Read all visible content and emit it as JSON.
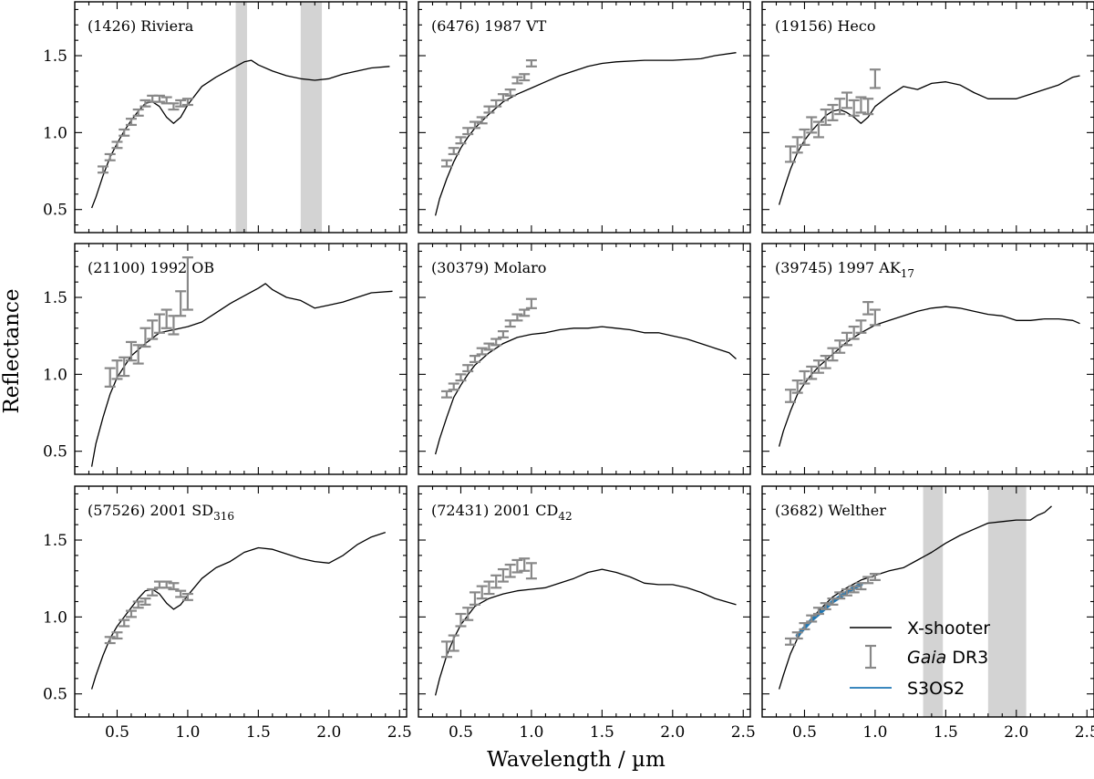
{
  "figure": {
    "xlabel": "Wavelength / µm",
    "ylabel": "Reflectance"
  },
  "legend": {
    "xshooter": "X-shooter",
    "gaia_italic": "Gaia",
    "gaia_rest": " DR3",
    "s3os2": "S3OS2"
  },
  "chart_data": [
    {
      "type": "line",
      "title": "(1426) Riviera",
      "xlim": [
        0.2,
        2.55
      ],
      "ylim": [
        0.35,
        1.85
      ],
      "xticks": [
        0.5,
        1.0,
        1.5,
        2.0,
        2.5
      ],
      "yticks": [
        0.5,
        1.0,
        1.5
      ],
      "xticklabels": [
        "",
        "",
        "",
        "",
        ""
      ],
      "yticklabels": [
        "0.5",
        "1.0",
        "1.5"
      ],
      "bands": [
        [
          1.34,
          1.42
        ],
        [
          1.8,
          1.95
        ]
      ],
      "spectrum": {
        "x": [
          0.32,
          0.35,
          0.4,
          0.45,
          0.5,
          0.55,
          0.6,
          0.65,
          0.7,
          0.75,
          0.8,
          0.85,
          0.9,
          0.95,
          1.0,
          1.1,
          1.2,
          1.3,
          1.4,
          1.45,
          1.5,
          1.6,
          1.7,
          1.8,
          1.9,
          2.0,
          2.1,
          2.2,
          2.3,
          2.43
        ],
        "y": [
          0.51,
          0.58,
          0.72,
          0.84,
          0.93,
          1.01,
          1.08,
          1.14,
          1.19,
          1.2,
          1.17,
          1.1,
          1.06,
          1.1,
          1.18,
          1.3,
          1.36,
          1.41,
          1.46,
          1.47,
          1.44,
          1.4,
          1.37,
          1.35,
          1.34,
          1.35,
          1.38,
          1.4,
          1.42,
          1.43
        ]
      },
      "gaia": {
        "x": [
          0.4,
          0.45,
          0.5,
          0.55,
          0.6,
          0.65,
          0.7,
          0.75,
          0.8,
          0.85,
          0.9,
          0.95,
          1.0
        ],
        "y": [
          0.76,
          0.84,
          0.92,
          1.0,
          1.07,
          1.13,
          1.19,
          1.22,
          1.22,
          1.21,
          1.17,
          1.19,
          1.2
        ],
        "err": [
          0.02,
          0.02,
          0.02,
          0.02,
          0.02,
          0.02,
          0.02,
          0.02,
          0.02,
          0.02,
          0.02,
          0.02,
          0.02
        ]
      }
    },
    {
      "type": "line",
      "title": "(6476) 1987 VT",
      "xlim": [
        0.2,
        2.55
      ],
      "ylim": [
        0.35,
        1.85
      ],
      "xticks": [
        0.5,
        1.0,
        1.5,
        2.0,
        2.5
      ],
      "yticks": [
        0.5,
        1.0,
        1.5
      ],
      "xticklabels": [
        "",
        "",
        "",
        "",
        ""
      ],
      "yticklabels": [
        "",
        "",
        ""
      ],
      "bands": [],
      "spectrum": {
        "x": [
          0.32,
          0.35,
          0.4,
          0.45,
          0.5,
          0.55,
          0.6,
          0.7,
          0.8,
          0.9,
          1.0,
          1.1,
          1.2,
          1.3,
          1.4,
          1.5,
          1.6,
          1.8,
          2.0,
          2.2,
          2.3,
          2.45
        ],
        "y": [
          0.46,
          0.57,
          0.7,
          0.81,
          0.9,
          0.97,
          1.03,
          1.12,
          1.2,
          1.25,
          1.29,
          1.33,
          1.37,
          1.4,
          1.43,
          1.45,
          1.46,
          1.47,
          1.47,
          1.48,
          1.5,
          1.52
        ]
      },
      "gaia": {
        "x": [
          0.4,
          0.45,
          0.5,
          0.55,
          0.6,
          0.65,
          0.7,
          0.75,
          0.8,
          0.85,
          0.9,
          0.95,
          1.0
        ],
        "y": [
          0.8,
          0.88,
          0.95,
          1.01,
          1.05,
          1.08,
          1.15,
          1.19,
          1.23,
          1.26,
          1.34,
          1.36,
          1.45
        ],
        "err": [
          0.02,
          0.02,
          0.02,
          0.02,
          0.02,
          0.02,
          0.02,
          0.02,
          0.02,
          0.02,
          0.02,
          0.02,
          0.02
        ]
      }
    },
    {
      "type": "line",
      "title": "(19156) Heco",
      "xlim": [
        0.2,
        2.55
      ],
      "ylim": [
        0.35,
        1.85
      ],
      "xticks": [
        0.5,
        1.0,
        1.5,
        2.0,
        2.5
      ],
      "yticks": [
        0.5,
        1.0,
        1.5
      ],
      "xticklabels": [
        "",
        "",
        "",
        "",
        ""
      ],
      "yticklabels": [
        "",
        "",
        ""
      ],
      "bands": [],
      "spectrum": {
        "x": [
          0.32,
          0.35,
          0.4,
          0.45,
          0.5,
          0.55,
          0.6,
          0.65,
          0.7,
          0.75,
          0.8,
          0.85,
          0.9,
          0.95,
          1.0,
          1.1,
          1.2,
          1.3,
          1.4,
          1.5,
          1.6,
          1.7,
          1.8,
          1.9,
          2.0,
          2.1,
          2.2,
          2.3,
          2.4,
          2.45
        ],
        "y": [
          0.53,
          0.62,
          0.76,
          0.87,
          0.95,
          1.01,
          1.06,
          1.11,
          1.14,
          1.15,
          1.13,
          1.1,
          1.06,
          1.1,
          1.17,
          1.24,
          1.3,
          1.28,
          1.32,
          1.33,
          1.31,
          1.26,
          1.22,
          1.22,
          1.22,
          1.25,
          1.28,
          1.31,
          1.36,
          1.37
        ]
      },
      "gaia": {
        "x": [
          0.4,
          0.45,
          0.5,
          0.55,
          0.6,
          0.65,
          0.7,
          0.75,
          0.8,
          0.85,
          0.9,
          0.95,
          1.0
        ],
        "y": [
          0.86,
          0.92,
          0.97,
          1.05,
          1.02,
          1.1,
          1.13,
          1.17,
          1.21,
          1.16,
          1.18,
          1.17,
          1.35
        ],
        "err": [
          0.05,
          0.05,
          0.05,
          0.05,
          0.05,
          0.05,
          0.05,
          0.05,
          0.05,
          0.05,
          0.05,
          0.05,
          0.06
        ]
      }
    },
    {
      "type": "line",
      "title": "(21100) 1992 OB",
      "xlim": [
        0.2,
        2.55
      ],
      "ylim": [
        0.35,
        1.85
      ],
      "xticks": [
        0.5,
        1.0,
        1.5,
        2.0,
        2.5
      ],
      "yticks": [
        0.5,
        1.0,
        1.5
      ],
      "xticklabels": [
        "",
        "",
        "",
        "",
        ""
      ],
      "yticklabels": [
        "0.5",
        "1.0",
        "1.5"
      ],
      "bands": [],
      "spectrum": {
        "x": [
          0.32,
          0.35,
          0.4,
          0.45,
          0.5,
          0.55,
          0.6,
          0.7,
          0.8,
          0.9,
          1.0,
          1.1,
          1.2,
          1.3,
          1.4,
          1.5,
          1.55,
          1.6,
          1.7,
          1.8,
          1.9,
          2.0,
          2.1,
          2.2,
          2.3,
          2.45
        ],
        "y": [
          0.4,
          0.55,
          0.72,
          0.87,
          0.98,
          1.05,
          1.12,
          1.2,
          1.27,
          1.29,
          1.31,
          1.34,
          1.4,
          1.46,
          1.51,
          1.56,
          1.59,
          1.55,
          1.5,
          1.48,
          1.43,
          1.45,
          1.47,
          1.5,
          1.53,
          1.54
        ]
      },
      "gaia": {
        "x": [
          0.45,
          0.5,
          0.55,
          0.6,
          0.65,
          0.7,
          0.75,
          0.8,
          0.85,
          0.9,
          0.95,
          1.0
        ],
        "y": [
          0.98,
          1.03,
          1.05,
          1.15,
          1.13,
          1.24,
          1.29,
          1.33,
          1.36,
          1.32,
          1.46,
          1.59
        ],
        "err": [
          0.06,
          0.06,
          0.06,
          0.06,
          0.06,
          0.06,
          0.06,
          0.06,
          0.06,
          0.06,
          0.08,
          0.17
        ]
      }
    },
    {
      "type": "line",
      "title": "(30379) Molaro",
      "xlim": [
        0.2,
        2.55
      ],
      "ylim": [
        0.35,
        1.85
      ],
      "xticks": [
        0.5,
        1.0,
        1.5,
        2.0,
        2.5
      ],
      "yticks": [
        0.5,
        1.0,
        1.5
      ],
      "xticklabels": [
        "",
        "",
        "",
        "",
        ""
      ],
      "yticklabels": [
        "",
        "",
        ""
      ],
      "bands": [],
      "spectrum": {
        "x": [
          0.32,
          0.35,
          0.4,
          0.45,
          0.5,
          0.55,
          0.6,
          0.7,
          0.8,
          0.9,
          1.0,
          1.1,
          1.2,
          1.3,
          1.4,
          1.5,
          1.6,
          1.7,
          1.8,
          1.9,
          2.0,
          2.1,
          2.2,
          2.3,
          2.4,
          2.45
        ],
        "y": [
          0.48,
          0.58,
          0.72,
          0.85,
          0.93,
          1.0,
          1.06,
          1.14,
          1.2,
          1.24,
          1.26,
          1.27,
          1.29,
          1.3,
          1.3,
          1.31,
          1.3,
          1.29,
          1.27,
          1.27,
          1.25,
          1.23,
          1.2,
          1.17,
          1.14,
          1.1
        ]
      },
      "gaia": {
        "x": [
          0.4,
          0.45,
          0.5,
          0.55,
          0.6,
          0.65,
          0.7,
          0.75,
          0.8,
          0.85,
          0.9,
          0.95,
          1.0
        ],
        "y": [
          0.87,
          0.92,
          0.98,
          1.04,
          1.1,
          1.15,
          1.18,
          1.21,
          1.26,
          1.33,
          1.37,
          1.4,
          1.46
        ],
        "err": [
          0.02,
          0.02,
          0.02,
          0.02,
          0.02,
          0.02,
          0.02,
          0.02,
          0.02,
          0.02,
          0.02,
          0.02,
          0.03
        ]
      }
    },
    {
      "type": "line",
      "title": "(39745) 1997 AK17",
      "xlim": [
        0.2,
        2.55
      ],
      "ylim": [
        0.35,
        1.85
      ],
      "xticks": [
        0.5,
        1.0,
        1.5,
        2.0,
        2.5
      ],
      "yticks": [
        0.5,
        1.0,
        1.5
      ],
      "xticklabels": [
        "",
        "",
        "",
        "",
        ""
      ],
      "yticklabels": [
        "",
        "",
        ""
      ],
      "bands": [],
      "spectrum": {
        "x": [
          0.32,
          0.35,
          0.4,
          0.45,
          0.5,
          0.55,
          0.6,
          0.7,
          0.8,
          0.9,
          1.0,
          1.1,
          1.2,
          1.3,
          1.4,
          1.5,
          1.6,
          1.7,
          1.8,
          1.9,
          2.0,
          2.1,
          2.2,
          2.3,
          2.4,
          2.45
        ],
        "y": [
          0.53,
          0.63,
          0.76,
          0.87,
          0.94,
          1.0,
          1.05,
          1.13,
          1.21,
          1.27,
          1.32,
          1.35,
          1.38,
          1.41,
          1.43,
          1.44,
          1.43,
          1.41,
          1.39,
          1.38,
          1.35,
          1.35,
          1.36,
          1.36,
          1.35,
          1.33
        ]
      },
      "gaia": {
        "x": [
          0.4,
          0.45,
          0.5,
          0.55,
          0.6,
          0.65,
          0.7,
          0.75,
          0.8,
          0.85,
          0.9,
          0.95,
          1.0
        ],
        "y": [
          0.86,
          0.92,
          0.98,
          1.01,
          1.05,
          1.08,
          1.13,
          1.18,
          1.23,
          1.27,
          1.31,
          1.43,
          1.37
        ],
        "err": [
          0.04,
          0.04,
          0.04,
          0.04,
          0.04,
          0.04,
          0.04,
          0.04,
          0.04,
          0.04,
          0.04,
          0.04,
          0.05
        ]
      }
    },
    {
      "type": "line",
      "title": "(57526) 2001 SD316",
      "xlim": [
        0.2,
        2.55
      ],
      "ylim": [
        0.35,
        1.85
      ],
      "xticks": [
        0.5,
        1.0,
        1.5,
        2.0,
        2.5
      ],
      "yticks": [
        0.5,
        1.0,
        1.5
      ],
      "xticklabels": [
        "0.5",
        "1.0",
        "1.5",
        "2.0",
        "2.5"
      ],
      "yticklabels": [
        "0.5",
        "1.0",
        "1.5"
      ],
      "bands": [],
      "spectrum": {
        "x": [
          0.32,
          0.35,
          0.4,
          0.45,
          0.5,
          0.55,
          0.6,
          0.65,
          0.7,
          0.75,
          0.8,
          0.85,
          0.9,
          0.95,
          1.0,
          1.1,
          1.2,
          1.3,
          1.4,
          1.5,
          1.6,
          1.7,
          1.8,
          1.9,
          2.0,
          2.1,
          2.2,
          2.3,
          2.4
        ],
        "y": [
          0.53,
          0.62,
          0.75,
          0.86,
          0.94,
          1.0,
          1.06,
          1.12,
          1.17,
          1.18,
          1.15,
          1.09,
          1.05,
          1.08,
          1.14,
          1.25,
          1.32,
          1.36,
          1.42,
          1.45,
          1.44,
          1.41,
          1.38,
          1.36,
          1.35,
          1.4,
          1.47,
          1.52,
          1.55
        ]
      },
      "gaia": {
        "x": [
          0.45,
          0.5,
          0.55,
          0.6,
          0.65,
          0.7,
          0.75,
          0.8,
          0.85,
          0.9,
          0.95,
          1.0
        ],
        "y": [
          0.85,
          0.88,
          0.96,
          1.02,
          1.08,
          1.1,
          1.16,
          1.21,
          1.21,
          1.2,
          1.15,
          1.13
        ],
        "err": [
          0.02,
          0.02,
          0.02,
          0.02,
          0.02,
          0.02,
          0.02,
          0.02,
          0.02,
          0.02,
          0.02,
          0.02
        ]
      }
    },
    {
      "type": "line",
      "title": "(72431) 2001 CD42",
      "xlim": [
        0.2,
        2.55
      ],
      "ylim": [
        0.35,
        1.85
      ],
      "xticks": [
        0.5,
        1.0,
        1.5,
        2.0,
        2.5
      ],
      "yticks": [
        0.5,
        1.0,
        1.5
      ],
      "xticklabels": [
        "0.5",
        "1.0",
        "1.5",
        "2.0",
        "2.5"
      ],
      "yticklabels": [
        "",
        "",
        ""
      ],
      "bands": [],
      "spectrum": {
        "x": [
          0.32,
          0.35,
          0.4,
          0.45,
          0.5,
          0.55,
          0.6,
          0.7,
          0.8,
          0.9,
          1.0,
          1.1,
          1.2,
          1.3,
          1.4,
          1.5,
          1.6,
          1.7,
          1.8,
          1.9,
          2.0,
          2.1,
          2.2,
          2.3,
          2.45
        ],
        "y": [
          0.49,
          0.6,
          0.75,
          0.86,
          0.95,
          1.01,
          1.07,
          1.12,
          1.15,
          1.17,
          1.18,
          1.19,
          1.22,
          1.25,
          1.29,
          1.31,
          1.29,
          1.26,
          1.22,
          1.21,
          1.21,
          1.19,
          1.16,
          1.12,
          1.08
        ]
      },
      "gaia": {
        "x": [
          0.4,
          0.45,
          0.5,
          0.55,
          0.6,
          0.65,
          0.7,
          0.75,
          0.8,
          0.85,
          0.9,
          0.95,
          1.0
        ],
        "y": [
          0.79,
          0.83,
          0.98,
          1.02,
          1.12,
          1.16,
          1.19,
          1.23,
          1.27,
          1.3,
          1.33,
          1.34,
          1.3
        ],
        "err": [
          0.05,
          0.05,
          0.04,
          0.04,
          0.04,
          0.04,
          0.04,
          0.04,
          0.04,
          0.04,
          0.04,
          0.04,
          0.05
        ]
      }
    },
    {
      "type": "line",
      "title": "(3682) Welther",
      "xlim": [
        0.2,
        2.55
      ],
      "ylim": [
        0.35,
        1.85
      ],
      "xticks": [
        0.5,
        1.0,
        1.5,
        2.0,
        2.5
      ],
      "yticks": [
        0.5,
        1.0,
        1.5
      ],
      "xticklabels": [
        "0.5",
        "1.0",
        "1.5",
        "2.0",
        "2.5"
      ],
      "yticklabels": [
        "",
        "",
        ""
      ],
      "bands": [
        [
          1.34,
          1.48
        ],
        [
          1.8,
          2.07
        ]
      ],
      "spectrum": {
        "x": [
          0.32,
          0.35,
          0.4,
          0.45,
          0.5,
          0.6,
          0.7,
          0.8,
          0.9,
          1.0,
          1.1,
          1.2,
          1.3,
          1.4,
          1.5,
          1.6,
          1.7,
          1.8,
          1.9,
          2.0,
          2.1,
          2.15,
          2.2,
          2.25
        ],
        "y": [
          0.53,
          0.62,
          0.76,
          0.86,
          0.93,
          1.04,
          1.13,
          1.19,
          1.24,
          1.27,
          1.3,
          1.32,
          1.37,
          1.42,
          1.48,
          1.53,
          1.57,
          1.61,
          1.62,
          1.63,
          1.63,
          1.66,
          1.68,
          1.72
        ]
      },
      "gaia": {
        "x": [
          0.4,
          0.45,
          0.5,
          0.55,
          0.6,
          0.65,
          0.7,
          0.75,
          0.8,
          0.85,
          0.9,
          0.95,
          1.0
        ],
        "y": [
          0.84,
          0.88,
          0.94,
          0.99,
          1.04,
          1.07,
          1.1,
          1.14,
          1.16,
          1.18,
          1.2,
          1.24,
          1.26
        ],
        "err": [
          0.02,
          0.02,
          0.02,
          0.02,
          0.02,
          0.02,
          0.02,
          0.02,
          0.02,
          0.02,
          0.02,
          0.02,
          0.02
        ]
      },
      "s3os2": {
        "x": [
          0.45,
          0.5,
          0.55,
          0.6,
          0.65,
          0.7,
          0.75,
          0.8,
          0.85,
          0.9
        ],
        "y": [
          0.88,
          0.93,
          0.98,
          1.02,
          1.06,
          1.1,
          1.13,
          1.16,
          1.19,
          1.21
        ]
      }
    }
  ]
}
